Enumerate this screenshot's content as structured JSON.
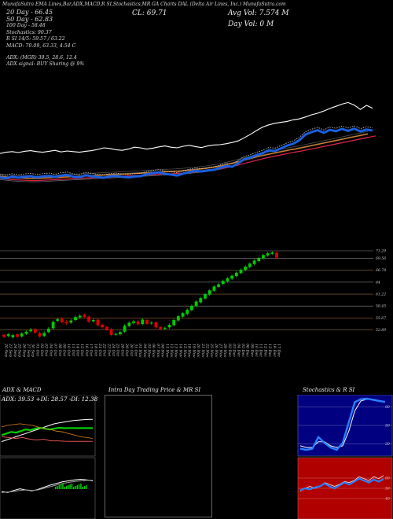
{
  "header": {
    "strip": "MunafaSutra  EMA Lines,Bar,ADX,MACD,R                 SI,Stochastics,MR           GA Charts DAL                (Delta Air Lines, Inc.) MunafaSutra.com",
    "close": "CL: 69.71",
    "avg_vol": "Avg Vol: 7.574   M",
    "day_vol": "Day Vol: 0   M"
  },
  "indicators": {
    "dma20": "20 Day - 66.45",
    "dma50": "50 Day - 62.83",
    "dma100": "100 Day - 58.48",
    "stoch": "Stochastics: 90.37",
    "rsi": "R                  SI 14/5: 59.57 / 63.22",
    "macd": "MACD: 70.09, 63.33,  4.54   C",
    "adx": "ADX:                               (MGR) 39.5,   28.6,   12.4",
    "adx_signal": "ADX   signal:                                  BUY Sharing @ 9%"
  },
  "panels": {
    "adx_macd": "ADX  & MACD",
    "adx_values": "ADX: 39.53 +DI: 28.57 -DI: 12.38",
    "intraday": "Intra  Day Trading Price  & MR                  SI",
    "stoch_rsi": "Stochastics & R                  SI"
  },
  "colors": {
    "up": "#00cc00",
    "down": "#dd0000",
    "ema_blue": "#1a5fe0",
    "ema_orange": "#e08020",
    "ema_red": "#dd2244",
    "stoch_bg": "#000080",
    "rsi_bg": "#b00000"
  },
  "chart_data": [
    {
      "type": "line",
      "name": "price_ema_overview",
      "x": [
        "20 Sep",
        "23 Sep",
        "24 Sep",
        "25 Sep",
        "26 Sep",
        "27 Sep",
        "30 Sep",
        "01 Oct",
        "02 Oct",
        "03 Oct",
        "04 Oct",
        "07 Oct",
        "08 Oct",
        "09 Oct",
        "10 Oct",
        "11 Oct",
        "14 Oct",
        "15 Oct",
        "16 Oct",
        "17 Oct",
        "18 Oct",
        "21 Oct",
        "22 Oct",
        "23 Oct",
        "24 Oct",
        "25 Oct",
        "28 Oct",
        "29 Oct",
        "30 Oct",
        "31 Oct",
        "01 Nov",
        "04 Nov",
        "05 Nov",
        "06 Nov",
        "07 Nov",
        "08 Nov",
        "11 Nov",
        "12 Nov",
        "13 Nov",
        "14 Nov",
        "15 Nov",
        "18 Nov",
        "19 Nov",
        "20 Nov",
        "21 Nov",
        "22 Nov",
        "25 Nov",
        "26 Nov",
        "27 Nov",
        "29 Nov",
        "02 Dec",
        "03 Dec",
        "04 Dec",
        "05 Dec",
        "06 Dec",
        "09 Dec",
        "10 Dec",
        "11 Dec",
        "12 Dec",
        "13 Dec",
        "16 Dec",
        "17 Dec"
      ],
      "series": [
        {
          "values": [
            47.6,
            47.3,
            47.9,
            47.5,
            47.8,
            48.0,
            47.6,
            47.9,
            48.1,
            47.7,
            48.2,
            48.4,
            47.8,
            47.6,
            48.3,
            48.0,
            47.7,
            47.5,
            47.9,
            48.1,
            47.8,
            47.6,
            47.9,
            48.0,
            48.6,
            48.9,
            49.2,
            48.7,
            48.5,
            48.2,
            48.8,
            49.3,
            49.7,
            49.5,
            49.8,
            50.0,
            50.6,
            51.2,
            51.0,
            52.1,
            53.4,
            53.9,
            54.7,
            55.3,
            56.2,
            56.0,
            56.8,
            57.7,
            58.3,
            59.4,
            61.2,
            62.0,
            62.6,
            61.8,
            62.7,
            62.3,
            63.0,
            62.4,
            63.1,
            62.2,
            62.8,
            62.5
          ]
        },
        {
          "values": [
            55.2,
            55.6,
            55.8,
            55.5,
            55.9,
            56.1,
            55.8,
            55.6,
            55.9,
            56.2,
            55.7,
            56.0,
            55.8,
            55.6,
            55.9,
            56.1,
            56.5,
            57.0,
            56.8,
            56.4,
            56.2,
            56.6,
            57.2,
            57.0,
            56.6,
            56.9,
            57.3,
            57.6,
            57.2,
            57.0,
            57.5,
            57.8,
            57.4,
            57.1,
            57.6,
            57.9,
            58.0,
            58.3,
            58.7,
            59.2,
            60.2,
            61.3,
            62.5,
            63.6,
            64.3,
            64.8,
            65.1,
            65.4,
            65.9,
            66.2,
            66.8,
            67.5,
            68.0,
            68.7,
            69.5,
            70.2,
            70.9,
            71.4,
            70.6,
            69.2,
            70.5,
            69.6
          ]
        },
        {
          "values": [
            47.5,
            47.3,
            47.1,
            47.0,
            46.9,
            46.8,
            46.8,
            46.9,
            47.0,
            47.1,
            47.2,
            47.3,
            47.4,
            47.5,
            47.6,
            47.7,
            47.8,
            47.9,
            48.0,
            48.1,
            48.2,
            48.3,
            48.4,
            48.5,
            48.6,
            48.7,
            48.8,
            48.9,
            49.0,
            49.1,
            49.2,
            49.4,
            49.6,
            49.8,
            50.0,
            50.3,
            50.6,
            51.0,
            51.4,
            51.9,
            52.4,
            52.9,
            53.4,
            53.9,
            54.3,
            54.7,
            55.1,
            55.5,
            55.9,
            56.2,
            56.6,
            57.0,
            57.4,
            57.8,
            58.2,
            58.6,
            59.0,
            59.4,
            59.8,
            60.2,
            60.6,
            61.0
          ]
        }
      ],
      "ylim": [
        44,
        74
      ]
    },
    {
      "type": "candlestick",
      "name": "price_bars",
      "categories": [
        "20 Sep",
        "23 Sep",
        "24 Sep",
        "25 Sep",
        "26 Sep",
        "27 Sep",
        "30 Sep",
        "01 Oct",
        "02 Oct",
        "03 Oct",
        "04 Oct",
        "07 Oct",
        "08 Oct",
        "09 Oct",
        "10 Oct",
        "11 Oct",
        "14 Oct",
        "15 Oct",
        "16 Oct",
        "17 Oct",
        "18 Oct",
        "21 Oct",
        "22 Oct",
        "23 Oct",
        "24 Oct",
        "25 Oct",
        "28 Oct",
        "29 Oct",
        "30 Oct",
        "31 Oct",
        "01 Nov",
        "04 Nov",
        "05 Nov",
        "06 Nov",
        "07 Nov",
        "08 Nov",
        "11 Nov",
        "12 Nov",
        "13 Nov",
        "14 Nov",
        "15 Nov",
        "18 Nov",
        "19 Nov",
        "20 Nov",
        "21 Nov",
        "22 Nov",
        "25 Nov",
        "26 Nov",
        "27 Nov",
        "29 Nov",
        "02 Dec",
        "03 Dec",
        "04 Dec",
        "05 Dec",
        "06 Dec",
        "09 Dec",
        "10 Dec",
        "11 Dec",
        "12 Dec",
        "13 Dec",
        "16 Dec",
        "17 Dec"
      ],
      "open": [
        51.8,
        51.5,
        51.2,
        51.9,
        51.4,
        52.0,
        52.6,
        53.1,
        52.2,
        51.5,
        52.4,
        53.3,
        55.0,
        55.5,
        54.8,
        54.6,
        55.2,
        55.8,
        56.4,
        56.0,
        54.9,
        55.3,
        54.1,
        53.6,
        53.1,
        51.8,
        51.9,
        52.5,
        53.8,
        54.5,
        54.9,
        54.3,
        55.2,
        54.4,
        54.7,
        53.6,
        53.2,
        53.5,
        54.0,
        55.1,
        56.0,
        56.6,
        57.5,
        58.4,
        59.3,
        60.2,
        61.1,
        62.0,
        62.9,
        63.6,
        64.2,
        64.8,
        65.4,
        66.1,
        66.8,
        67.5,
        68.2,
        68.9,
        69.5,
        70.2,
        70.6,
        70.8
      ],
      "close": [
        51.3,
        51.9,
        51.7,
        51.3,
        52.1,
        52.5,
        53.0,
        52.3,
        51.4,
        52.2,
        53.2,
        54.8,
        55.4,
        54.7,
        54.4,
        55.1,
        55.9,
        56.2,
        55.9,
        54.8,
        55.2,
        54.0,
        53.5,
        53.0,
        51.7,
        52.0,
        52.4,
        53.9,
        54.6,
        54.9,
        54.2,
        55.3,
        54.3,
        54.6,
        53.5,
        53.1,
        53.4,
        54.1,
        55.2,
        56.1,
        56.8,
        57.6,
        58.5,
        59.5,
        60.3,
        61.2,
        62.1,
        63.0,
        63.5,
        64.3,
        64.9,
        65.5,
        66.2,
        66.9,
        67.6,
        68.3,
        69.0,
        69.6,
        70.3,
        70.7,
        70.9,
        69.7
      ],
      "high": [
        52.1,
        52.2,
        52.0,
        52.1,
        52.4,
        52.8,
        53.4,
        53.4,
        52.6,
        52.6,
        53.6,
        55.1,
        55.8,
        55.9,
        55.2,
        55.4,
        56.2,
        56.6,
        56.7,
        56.3,
        55.6,
        55.6,
        54.4,
        53.9,
        53.4,
        52.3,
        52.7,
        54.2,
        54.9,
        55.2,
        55.2,
        55.6,
        55.5,
        54.9,
        54.9,
        53.9,
        53.7,
        54.4,
        55.5,
        56.4,
        57.1,
        57.9,
        58.8,
        59.8,
        60.6,
        61.5,
        62.4,
        63.3,
        63.8,
        64.6,
        65.2,
        65.8,
        66.5,
        67.2,
        67.9,
        68.6,
        69.3,
        69.9,
        70.6,
        71.0,
        71.2,
        71.3
      ],
      "low": [
        51.0,
        51.2,
        50.9,
        51.0,
        51.1,
        51.7,
        52.3,
        52.0,
        51.1,
        51.2,
        52.1,
        53.0,
        54.7,
        54.4,
        54.1,
        54.3,
        54.9,
        55.5,
        55.6,
        54.5,
        54.6,
        53.7,
        53.2,
        52.7,
        51.4,
        51.5,
        51.6,
        52.2,
        53.5,
        54.2,
        53.9,
        54.0,
        54.0,
        54.1,
        53.2,
        52.8,
        52.9,
        53.2,
        53.7,
        54.8,
        55.7,
        56.3,
        57.2,
        58.1,
        59.0,
        59.9,
        60.8,
        61.7,
        62.6,
        63.3,
        63.9,
        64.5,
        65.1,
        65.8,
        66.5,
        67.2,
        67.9,
        68.6,
        69.2,
        69.9,
        70.3,
        69.4
      ],
      "y_ticks": [
        71.29,
        69.56,
        66.78,
        64,
        61.22,
        58.45,
        55.67,
        52.89
      ],
      "ylim": [
        51,
        72
      ]
    },
    {
      "type": "line",
      "name": "adx_macd",
      "series": [
        {
          "values": [
            12,
            14,
            16,
            18,
            20,
            22,
            24,
            26,
            28,
            30,
            32,
            34,
            35,
            36,
            37,
            38,
            38.5,
            39,
            39.3,
            39.5
          ]
        },
        {
          "values": [
            20,
            22,
            24,
            23,
            25,
            27,
            26,
            28,
            29,
            28,
            27,
            28,
            29,
            28.5,
            28.6,
            28.6,
            28.5,
            28.6,
            28.6,
            28.57
          ]
        },
        {
          "values": [
            18,
            17,
            16,
            17,
            15,
            14,
            15,
            13,
            13,
            12.5,
            12.4,
            12.4,
            12.3,
            12.38
          ]
        }
      ]
    },
    {
      "type": "line",
      "name": "stochastics",
      "x_ticks": [
        80,
        50,
        20
      ],
      "series": [
        {
          "values": [
            10,
            8,
            10,
            30,
            20,
            12,
            8,
            20,
            55,
            90,
            95,
            96,
            94,
            92,
            90.37
          ]
        },
        {
          "values": [
            15,
            12,
            12,
            22,
            22,
            15,
            12,
            15,
            40,
            75,
            92,
            95,
            95,
            93,
            91
          ]
        }
      ],
      "ylim": [
        0,
        100
      ]
    },
    {
      "type": "line",
      "name": "rsi",
      "x_ticks": [
        60,
        50,
        40
      ],
      "series": [
        {
          "values": [
            48,
            50,
            49,
            51,
            52,
            55,
            52,
            50,
            53,
            56,
            54,
            57,
            60,
            58,
            56,
            59,
            57,
            59.57
          ]
        },
        {
          "values": [
            47,
            50,
            52,
            50,
            52,
            56,
            54,
            52,
            54,
            57,
            56,
            58,
            62,
            60,
            58,
            62,
            60,
            63.22
          ]
        }
      ],
      "ylim": [
        20,
        80
      ]
    }
  ]
}
